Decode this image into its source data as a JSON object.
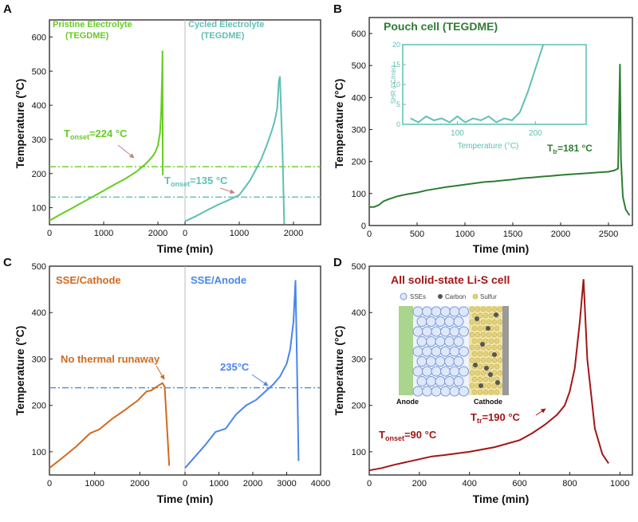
{
  "colors": {
    "green": "#66cc22",
    "teal": "#5fbfb5",
    "darkgreen": "#2e7d32",
    "orange": "#d2691e",
    "blue": "#4a86e8",
    "darkred": "#a31616",
    "axis": "#222222",
    "inset_border": "#5fbfb5"
  },
  "panel_labels": {
    "a": "A",
    "b": "B",
    "c": "C",
    "d": "D"
  },
  "chart_data": [
    {
      "id": "A",
      "type": "line",
      "ylabel": "Temperature (°C)",
      "xlabel": "Time (min)",
      "ylim": [
        50,
        650
      ],
      "yticks": [
        100,
        200,
        300,
        400,
        500,
        600
      ],
      "subplots": [
        {
          "name": "Pristine Electrolyte (TEGDME)",
          "label_line1": "Pristine Electrolyte",
          "label_line2": "(TEGDME)",
          "xlim": [
            0,
            2500
          ],
          "xticks": [
            0,
            1000,
            2000
          ],
          "x": [
            0,
            200,
            400,
            600,
            800,
            1000,
            1200,
            1400,
            1600,
            1700,
            1800,
            1900,
            1950,
            2000,
            2040,
            2060,
            2080,
            2085,
            2090
          ],
          "y": [
            62,
            80,
            97,
            115,
            132,
            150,
            168,
            185,
            205,
            218,
            232,
            250,
            262,
            282,
            320,
            380,
            500,
            560,
            195
          ]
        },
        {
          "name": "Cycled Electrolyte (TEGDME)",
          "label_line1": "Cycled Electrolyte",
          "label_line2": "(TEGDME)",
          "xlim": [
            0,
            2500
          ],
          "xticks": [
            0,
            1000,
            2000
          ],
          "x": [
            0,
            200,
            400,
            600,
            800,
            1000,
            1200,
            1400,
            1500,
            1600,
            1650,
            1700,
            1730,
            1750,
            1800,
            1830
          ],
          "y": [
            60,
            75,
            92,
            108,
            122,
            137,
            180,
            240,
            280,
            325,
            352,
            390,
            470,
            485,
            250,
            52
          ]
        }
      ],
      "hlines": [
        {
          "y": 220,
          "label_main": "T",
          "label_sub": "onset",
          "label_rest": "=224 °C",
          "color_key": "green"
        },
        {
          "y": 131,
          "label_main": "T",
          "label_sub": "onset",
          "label_rest": "=135 °C",
          "color_key": "teal"
        }
      ]
    },
    {
      "id": "B",
      "type": "line",
      "title": "Pouch cell (TEGDME)",
      "ylabel": "Temperature (°C)",
      "xlabel": "Time (min)",
      "xlim": [
        0,
        2750
      ],
      "ylim": [
        0,
        650
      ],
      "xticks": [
        0,
        500,
        1000,
        1500,
        2000,
        2500
      ],
      "yticks": [
        0,
        100,
        200,
        300,
        400,
        500,
        600
      ],
      "x": [
        0,
        50,
        100,
        150,
        200,
        300,
        400,
        500,
        600,
        700,
        800,
        900,
        1000,
        1100,
        1200,
        1300,
        1400,
        1500,
        1600,
        1700,
        1800,
        1900,
        2000,
        2100,
        2200,
        2300,
        2400,
        2500,
        2560,
        2600,
        2620,
        2630,
        2650,
        2680,
        2720
      ],
      "y": [
        58,
        58,
        64,
        76,
        82,
        92,
        98,
        103,
        110,
        115,
        120,
        124,
        128,
        132,
        136,
        138,
        141,
        144,
        148,
        150,
        153,
        155,
        158,
        160,
        162,
        164,
        166,
        168,
        172,
        178,
        505,
        210,
        90,
        50,
        32
      ],
      "annotation_main": "T",
      "annotation_sub": "tr",
      "annotation_rest": "=181 °C",
      "inset": {
        "ylabel": "SHR (°C/min)",
        "xlabel": "Temperature (°C)",
        "xlim": [
          30,
          265
        ],
        "ylim": [
          0,
          20
        ],
        "xticks": [
          100,
          200
        ],
        "yticks": [
          0,
          5,
          10,
          15,
          20
        ],
        "x": [
          40,
          50,
          60,
          70,
          80,
          90,
          100,
          110,
          120,
          130,
          140,
          150,
          160,
          170,
          180,
          190,
          195,
          200,
          205,
          210
        ],
        "y": [
          1.5,
          0.5,
          2,
          1,
          1.5,
          0.5,
          2,
          0.5,
          1.5,
          1,
          2,
          0.5,
          1.5,
          1,
          3,
          8,
          11,
          14,
          17,
          20
        ]
      }
    },
    {
      "id": "C",
      "type": "line",
      "ylabel": "Temperature (°C)",
      "xlabel": "Time (min)",
      "ylim": [
        50,
        500
      ],
      "yticks": [
        100,
        200,
        300,
        400,
        500
      ],
      "subplots": [
        {
          "name": "SSE/Cathode",
          "label": "SSE/Cathode",
          "annotation": "No thermal runaway",
          "xlim": [
            0,
            3000
          ],
          "xticks": [
            0,
            1000,
            2000
          ],
          "x": [
            0,
            300,
            600,
            900,
            950,
            1100,
            1400,
            1700,
            1750,
            1950,
            2150,
            2250,
            2400,
            2500,
            2550,
            2650
          ],
          "y": [
            65,
            88,
            112,
            140,
            142,
            148,
            172,
            192,
            196,
            210,
            230,
            232,
            242,
            248,
            240,
            70
          ]
        },
        {
          "name": "SSE/Anode",
          "label": "SSE/Anode",
          "annotation": "235°C",
          "xlim": [
            0,
            4000
          ],
          "xticks": [
            0,
            1000,
            2000,
            3000,
            4000
          ],
          "x": [
            0,
            300,
            600,
            900,
            1000,
            1200,
            1500,
            1800,
            2100,
            2400,
            2600,
            2800,
            3000,
            3100,
            3200,
            3260,
            3300,
            3350
          ],
          "y": [
            65,
            90,
            115,
            143,
            145,
            150,
            180,
            200,
            212,
            232,
            245,
            262,
            290,
            320,
            380,
            470,
            300,
            80
          ]
        }
      ],
      "hlines": [
        {
          "y": 238,
          "color_key": "blue"
        }
      ]
    },
    {
      "id": "D",
      "type": "line",
      "title": "All solid-state Li-S cell",
      "ylabel": "Temperature (°C)",
      "xlabel": "Time (min)",
      "xlim": [
        0,
        1050
      ],
      "ylim": [
        50,
        500
      ],
      "xticks": [
        0,
        200,
        400,
        600,
        800,
        1000
      ],
      "yticks": [
        100,
        200,
        300,
        400,
        500
      ],
      "x": [
        0,
        50,
        100,
        150,
        200,
        250,
        300,
        400,
        500,
        600,
        650,
        700,
        750,
        780,
        800,
        820,
        840,
        855,
        870,
        900,
        930,
        955
      ],
      "y": [
        60,
        65,
        72,
        78,
        84,
        90,
        93,
        100,
        110,
        125,
        140,
        158,
        180,
        200,
        230,
        280,
        380,
        472,
        300,
        150,
        95,
        75
      ],
      "annotation1_main": "T",
      "annotation1_sub": "onset",
      "annotation1_rest": "=90 °C",
      "annotation2_main": "T",
      "annotation2_sub": "tr",
      "annotation2_rest": "=190 °C",
      "schematic": {
        "legend": [
          "SSEs",
          "Carbon",
          "Sulfur"
        ],
        "anode_label": "Anode",
        "cathode_label": "Cathode"
      }
    }
  ]
}
